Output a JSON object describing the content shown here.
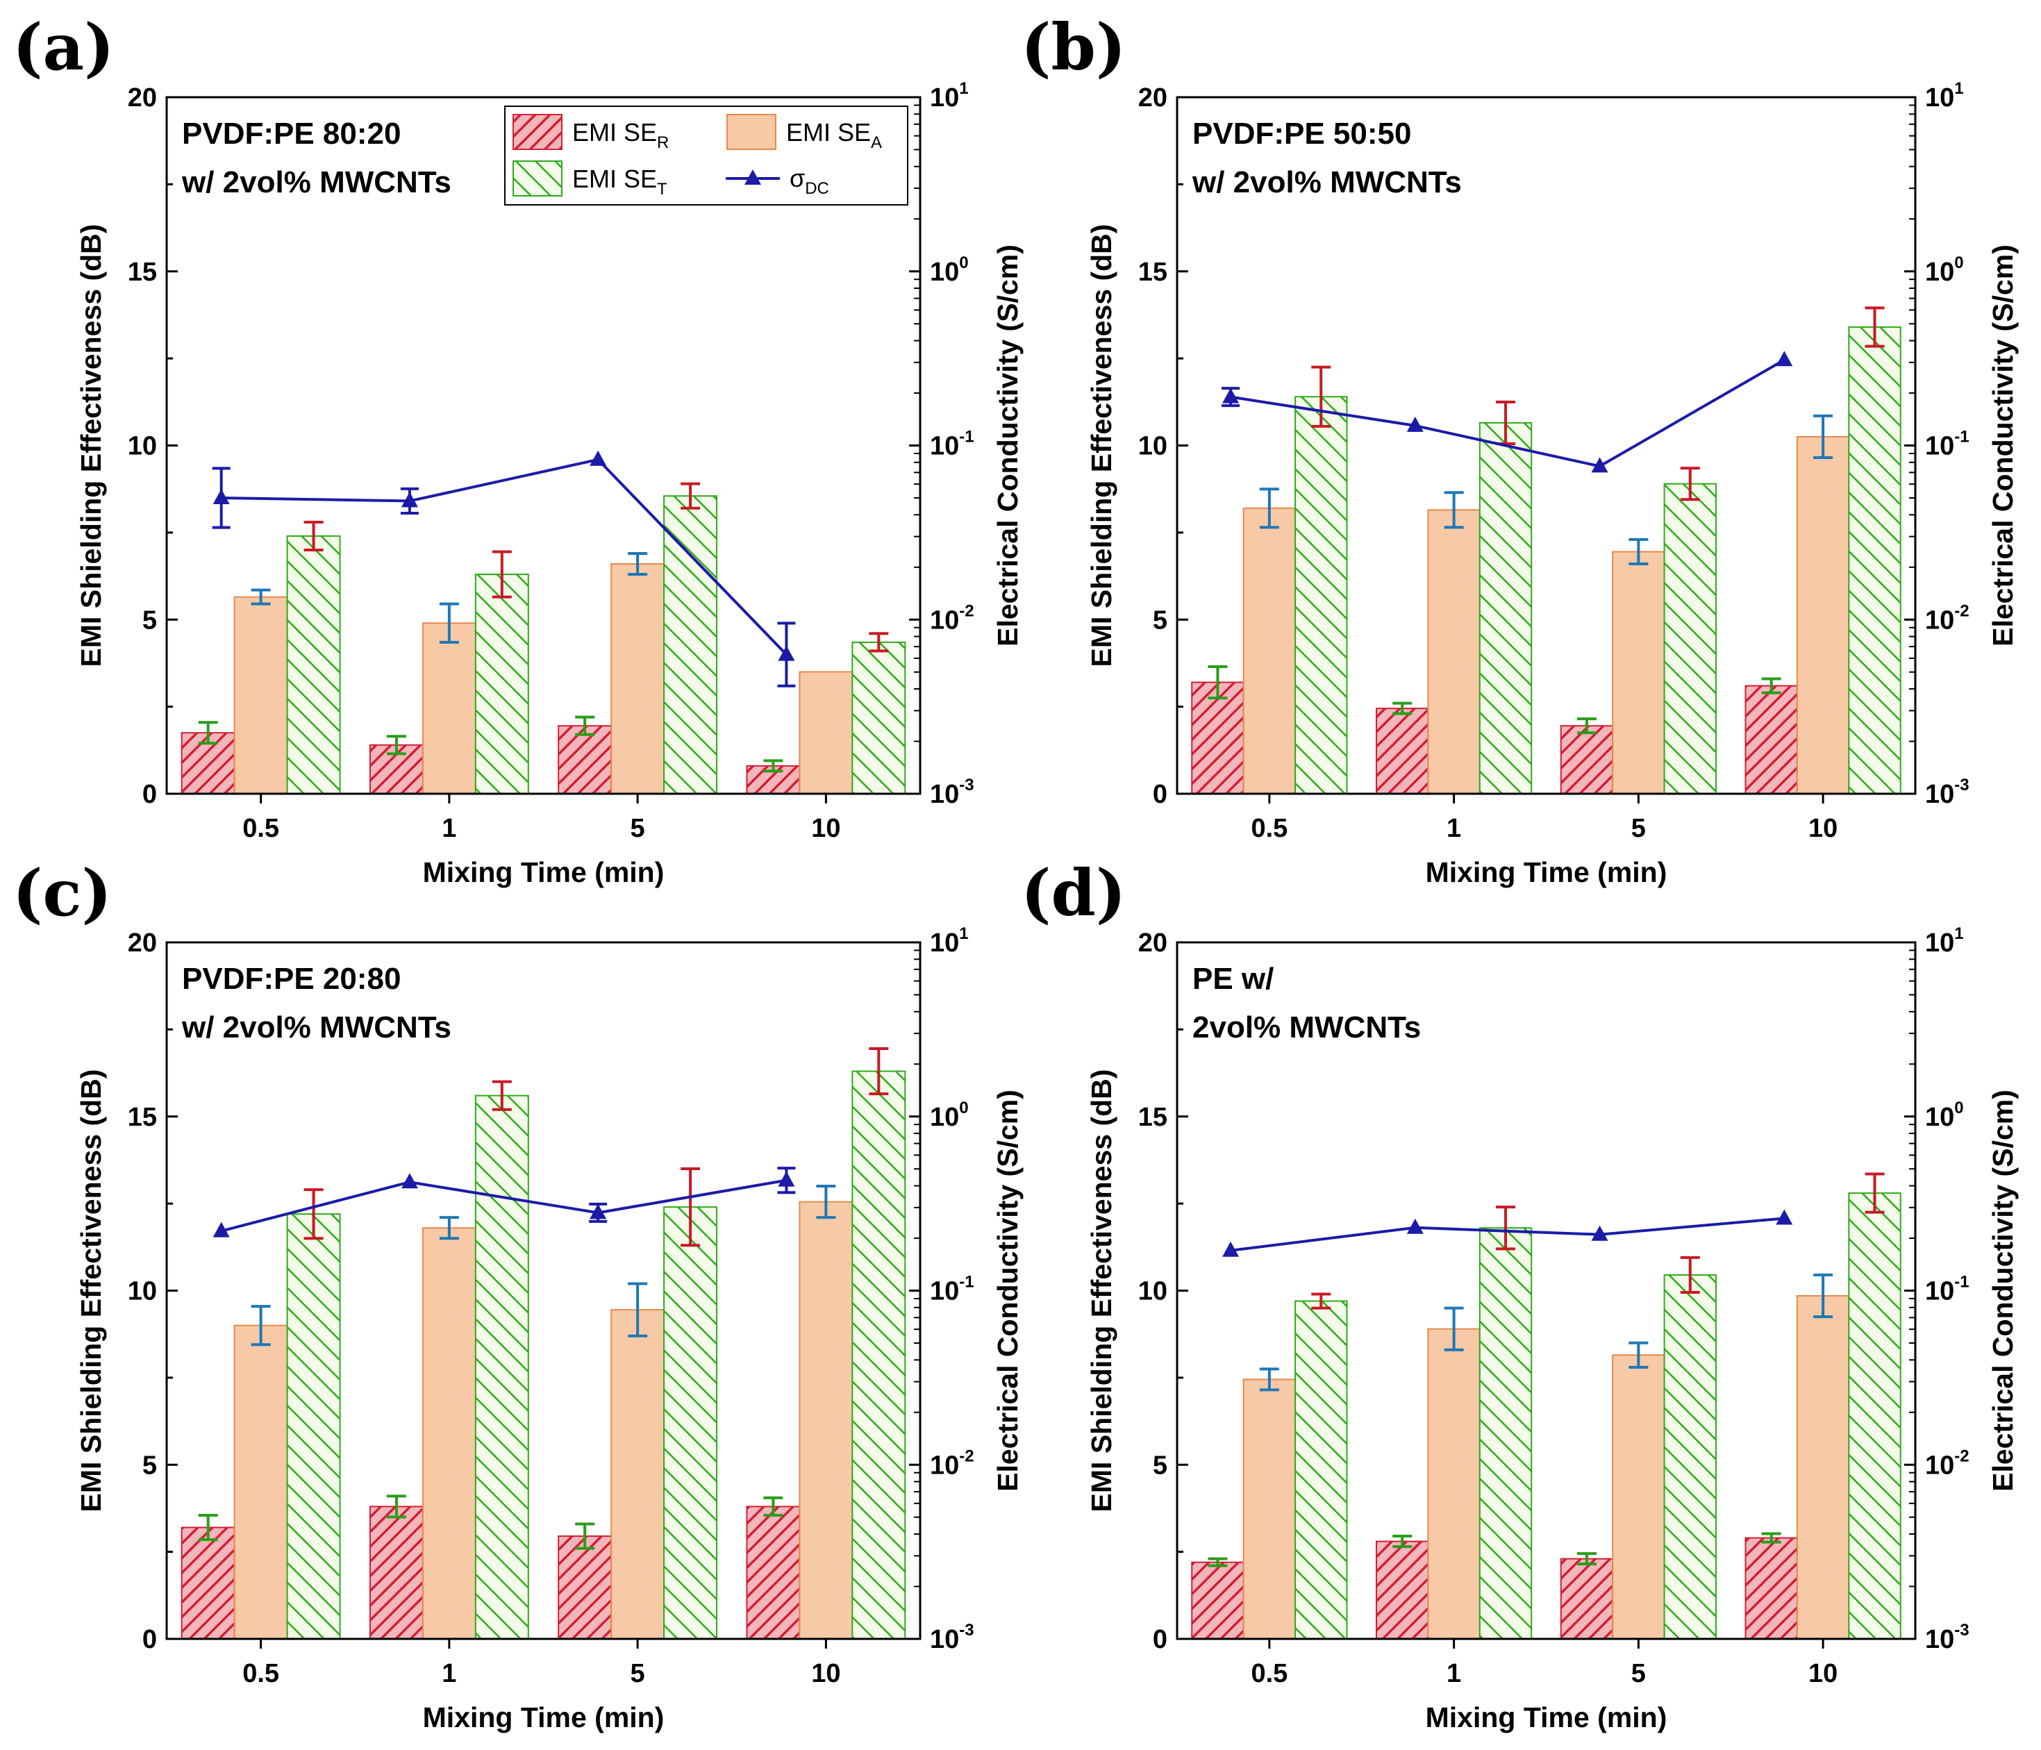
{
  "colors": {
    "ser_fill": "#f4b6bd",
    "ser_line": "#d21f34",
    "ser_err": "#d21f34",
    "sea_fill": "#f8c9a6",
    "sea_line": "#e48a4e",
    "sea_err": "#1f77b4",
    "set_fill": "#e8f6d4",
    "set_line": "#2faa1b",
    "set_err": "#c81a24",
    "ser_err_alt": "#2a9d1a",
    "sdc_line": "#1b1ba8",
    "axis": "#000000"
  },
  "legend": {
    "ser": {
      "main": "EMI SE",
      "sub": "R"
    },
    "sea": {
      "main": "EMI SE",
      "sub": "A"
    },
    "set": {
      "main": "EMI SE",
      "sub": "T"
    },
    "sdc": {
      "main": "σ",
      "sub": "DC"
    }
  },
  "chart_data": [
    {
      "letter": "(a)",
      "type": "bar",
      "annotation": [
        "PVDF:PE 80:20",
        "w/ 2vol% MWCNTs"
      ],
      "categories": [
        "0.5",
        "1",
        "5",
        "10"
      ],
      "xlabel": "Mixing Time (min)",
      "ylabel": "EMI Shielding Effectiveness (dB)",
      "y2label": "Electrical Conductivity (S/cm)",
      "ylim": [
        0,
        20
      ],
      "yticks": [
        "0",
        "5",
        "10",
        "15",
        "20"
      ],
      "y2lim_log": [
        -3,
        1
      ],
      "y2ticks": [
        "-3",
        "-2",
        "-1",
        "0",
        "1"
      ],
      "show_legend": true,
      "series": [
        {
          "name": "EMI SE_R",
          "values": [
            1.75,
            1.4,
            1.95,
            0.8
          ],
          "errors": [
            0.3,
            0.25,
            0.25,
            0.15
          ]
        },
        {
          "name": "EMI SE_A",
          "values": [
            5.65,
            4.9,
            6.6,
            3.5
          ],
          "errors": [
            0.2,
            0.55,
            0.3,
            0.0
          ]
        },
        {
          "name": "EMI SE_T",
          "values": [
            7.4,
            6.3,
            8.55,
            4.35
          ],
          "errors": [
            0.4,
            0.65,
            0.35,
            0.25
          ]
        }
      ],
      "conductivity": {
        "name": "σDC",
        "values": [
          0.05,
          0.048,
          0.083,
          0.0063
        ],
        "errors_log": [
          0.17,
          0.07,
          0.02,
          0.18
        ]
      }
    },
    {
      "letter": "(b)",
      "type": "bar",
      "annotation": [
        "PVDF:PE 50:50",
        "w/ 2vol% MWCNTs"
      ],
      "categories": [
        "0.5",
        "1",
        "5",
        "10"
      ],
      "xlabel": "Mixing Time (min)",
      "ylabel": "EMI Shielding Effectiveness (dB)",
      "y2label": "Electrical Conductivity (S/cm)",
      "ylim": [
        0,
        20
      ],
      "yticks": [
        "0",
        "5",
        "10",
        "15",
        "20"
      ],
      "y2lim_log": [
        -3,
        1
      ],
      "y2ticks": [
        "-3",
        "-2",
        "-1",
        "0",
        "1"
      ],
      "show_legend": false,
      "series": [
        {
          "name": "EMI SE_R",
          "values": [
            3.2,
            2.45,
            1.95,
            3.1
          ],
          "errors": [
            0.45,
            0.15,
            0.2,
            0.2
          ]
        },
        {
          "name": "EMI SE_A",
          "values": [
            8.2,
            8.15,
            6.95,
            10.25
          ],
          "errors": [
            0.55,
            0.5,
            0.35,
            0.6
          ]
        },
        {
          "name": "EMI SE_T",
          "values": [
            11.4,
            10.65,
            8.9,
            13.4
          ],
          "errors": [
            0.85,
            0.6,
            0.45,
            0.55
          ]
        }
      ],
      "conductivity": {
        "name": "σDC",
        "values": [
          0.19,
          0.13,
          0.076,
          0.31
        ],
        "errors_log": [
          0.05,
          0.02,
          0.02,
          0.02
        ]
      }
    },
    {
      "letter": "(c)",
      "type": "bar",
      "annotation": [
        "PVDF:PE 20:80",
        "w/ 2vol% MWCNTs"
      ],
      "categories": [
        "0.5",
        "1",
        "5",
        "10"
      ],
      "xlabel": "Mixing Time (min)",
      "ylabel": "EMI Shielding Effectiveness (dB)",
      "y2label": "Electrical Conductivity (S/cm)",
      "ylim": [
        0,
        20
      ],
      "yticks": [
        "0",
        "5",
        "10",
        "15",
        "20"
      ],
      "y2lim_log": [
        -3,
        1
      ],
      "y2ticks": [
        "-3",
        "-2",
        "-1",
        "0",
        "1"
      ],
      "show_legend": false,
      "series": [
        {
          "name": "EMI SE_R",
          "values": [
            3.2,
            3.8,
            2.95,
            3.8
          ],
          "errors": [
            0.35,
            0.3,
            0.35,
            0.25
          ]
        },
        {
          "name": "EMI SE_A",
          "values": [
            9.0,
            11.8,
            9.45,
            12.55
          ],
          "errors": [
            0.55,
            0.3,
            0.75,
            0.45
          ]
        },
        {
          "name": "EMI SE_T",
          "values": [
            12.2,
            15.6,
            12.4,
            16.3
          ],
          "errors": [
            0.7,
            0.4,
            1.1,
            0.65
          ]
        }
      ],
      "conductivity": {
        "name": "σDC",
        "values": [
          0.22,
          0.42,
          0.28,
          0.43
        ],
        "errors_log": [
          0.02,
          0.03,
          0.05,
          0.07
        ]
      }
    },
    {
      "letter": "(d)",
      "type": "bar",
      "annotation": [
        "PE w/",
        "2vol% MWCNTs"
      ],
      "categories": [
        "0.5",
        "1",
        "5",
        "10"
      ],
      "xlabel": "Mixing Time (min)",
      "ylabel": "EMI Shielding Effectiveness (dB)",
      "y2label": "Electrical Conductivity (S/cm)",
      "ylim": [
        0,
        20
      ],
      "yticks": [
        "0",
        "5",
        "10",
        "15",
        "20"
      ],
      "y2lim_log": [
        -3,
        1
      ],
      "y2ticks": [
        "-3",
        "-2",
        "-1",
        "0",
        "1"
      ],
      "show_legend": false,
      "series": [
        {
          "name": "EMI SE_R",
          "values": [
            2.2,
            2.8,
            2.3,
            2.9
          ],
          "errors": [
            0.1,
            0.15,
            0.15,
            0.12
          ]
        },
        {
          "name": "EMI SE_A",
          "values": [
            7.45,
            8.9,
            8.15,
            9.85
          ],
          "errors": [
            0.3,
            0.6,
            0.35,
            0.6
          ]
        },
        {
          "name": "EMI SE_T",
          "values": [
            9.7,
            11.8,
            10.45,
            12.8
          ],
          "errors": [
            0.2,
            0.6,
            0.5,
            0.55
          ]
        }
      ],
      "conductivity": {
        "name": "σDC",
        "values": [
          0.17,
          0.23,
          0.21,
          0.26
        ],
        "errors_log": [
          0.015,
          0.015,
          0.015,
          0.015
        ]
      }
    }
  ]
}
